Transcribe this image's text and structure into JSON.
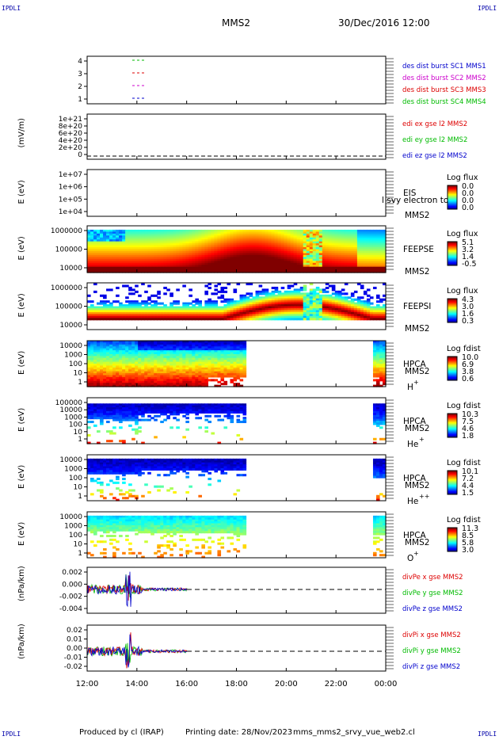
{
  "header": {
    "corner_label": "IPDLI",
    "spacecraft": "MMS2",
    "date_time": "30/Dec/2016 12:00"
  },
  "footer": {
    "produced_by": "Produced by cl (IRAP)",
    "printing_date": "Printing date: 28/Nov/2023",
    "filename": "mms_mms2_srvy_vue_web2.cl"
  },
  "colors": {
    "red": "#dd0000",
    "green": "#00bb00",
    "blue": "#0000cc",
    "magenta": "#cc00cc"
  },
  "chart_data": [
    {
      "type": "line",
      "panel": "burst-availability",
      "y_ticks": [
        "4",
        "3",
        "2",
        "1"
      ],
      "series": [
        {
          "name": "des dist burst SC1 MMS1",
          "color": "#0000cc"
        },
        {
          "name": "des dist burst SC2 MMS2",
          "color": "#cc00cc"
        },
        {
          "name": "des dist burst SC3 MMS3",
          "color": "#dd0000"
        },
        {
          "name": "des dist burst SC4 MMS4",
          "color": "#00bb00"
        }
      ]
    },
    {
      "type": "line",
      "panel": "edi-efield",
      "ylabel": "(mV/m)",
      "y_ticks": [
        "1e+21",
        "8e+20",
        "6e+20",
        "4e+20",
        "2e+20",
        "0"
      ],
      "series": [
        {
          "name": "edi ex gse l2 MMS2",
          "color": "#dd0000"
        },
        {
          "name": "edi ey gse l2 MMS2",
          "color": "#00bb00"
        },
        {
          "name": "edi ez gse l2 MMS2",
          "color": "#0000cc"
        }
      ]
    },
    {
      "type": "heatmap",
      "panel": "eis",
      "ylabel": "E (eV)",
      "y_ticks": [
        "1e+07",
        "1e+06",
        "1e+05",
        "1e+04"
      ],
      "instrument": "EIS",
      "overlay_text": "l  svy electron to",
      "spacecraft": "MMS2",
      "colorbar_title": "Log flux",
      "colorbar_ticks": [
        "0.0",
        "0.0",
        "0.0",
        "0.0"
      ]
    },
    {
      "type": "heatmap",
      "panel": "feeps-electron",
      "ylabel": "E (eV)",
      "y_ticks": [
        "1000000",
        "100000",
        "10000"
      ],
      "instrument": "FEEPSE",
      "spacecraft": "MMS2",
      "colorbar_title": "Log flux",
      "colorbar_ticks": [
        "5.1",
        "3.2",
        "1.4",
        "-0.5"
      ]
    },
    {
      "type": "heatmap",
      "panel": "feeps-ion",
      "ylabel": "E (eV)",
      "y_ticks": [
        "1000000",
        "100000",
        "10000"
      ],
      "instrument": "FEEPSI",
      "spacecraft": "MMS2",
      "colorbar_title": "Log flux",
      "colorbar_ticks": [
        "4.3",
        "3.0",
        "1.6",
        "0.3"
      ]
    },
    {
      "type": "heatmap",
      "panel": "hpca-h",
      "ylabel": "E (eV)",
      "y_ticks": [
        "10000",
        "1000",
        "100",
        "10",
        "1"
      ],
      "instrument": "HPCA",
      "spacecraft": "MMS2",
      "species": "H",
      "species_charge": "+",
      "colorbar_title": "Log fdist",
      "colorbar_ticks": [
        "10.0",
        "6.9",
        "3.8",
        "0.6"
      ]
    },
    {
      "type": "heatmap",
      "panel": "hpca-he",
      "ylabel": "E (eV)",
      "y_ticks": [
        "100000",
        "10000",
        "1000",
        "100",
        "10",
        "1"
      ],
      "instrument": "HPCA",
      "spacecraft": "MMS2",
      "species": "He",
      "species_charge": "+",
      "colorbar_title": "Log fdist",
      "colorbar_ticks": [
        "10.3",
        "7.5",
        "4.6",
        "1.8"
      ]
    },
    {
      "type": "heatmap",
      "panel": "hpca-he2",
      "ylabel": "E (eV)",
      "y_ticks": [
        "10000",
        "1000",
        "100",
        "10",
        "1"
      ],
      "instrument": "HPCA",
      "spacecraft": "MMS2",
      "species": "He",
      "species_charge": "++",
      "colorbar_title": "Log fdist",
      "colorbar_ticks": [
        "10.1",
        "7.2",
        "4.4",
        "1.5"
      ]
    },
    {
      "type": "heatmap",
      "panel": "hpca-o",
      "ylabel": "E (eV)",
      "y_ticks": [
        "10000",
        "1000",
        "100",
        "10",
        "1"
      ],
      "instrument": "HPCA",
      "spacecraft": "MMS2",
      "species": "O",
      "species_charge": "+",
      "colorbar_title": "Log fdist",
      "colorbar_ticks": [
        "11.3",
        "8.5",
        "5.8",
        "3.0"
      ]
    },
    {
      "type": "line",
      "panel": "divpe",
      "ylabel": "(nPa/km)",
      "y_ticks": [
        "0.002",
        "0.000",
        "-0.002",
        "-0.004"
      ],
      "series": [
        {
          "name": "divPe x gse MMS2",
          "color": "#dd0000"
        },
        {
          "name": "divPe y gse MMS2",
          "color": "#00bb00"
        },
        {
          "name": "divPe z gse MMS2",
          "color": "#0000cc"
        }
      ]
    },
    {
      "type": "line",
      "panel": "divpi",
      "ylabel": "(nPa/km)",
      "y_ticks": [
        "0.02",
        "0.01",
        "0.00",
        "-0.01",
        "-0.02"
      ],
      "series": [
        {
          "name": "divPi x gse MMS2",
          "color": "#dd0000"
        },
        {
          "name": "divPi y gse MMS2",
          "color": "#00bb00"
        },
        {
          "name": "divPi z gse MMS2",
          "color": "#0000cc"
        }
      ]
    }
  ],
  "x_axis": {
    "ticks": [
      "12:00",
      "14:00",
      "16:00",
      "18:00",
      "20:00",
      "22:00",
      "00:00"
    ]
  }
}
